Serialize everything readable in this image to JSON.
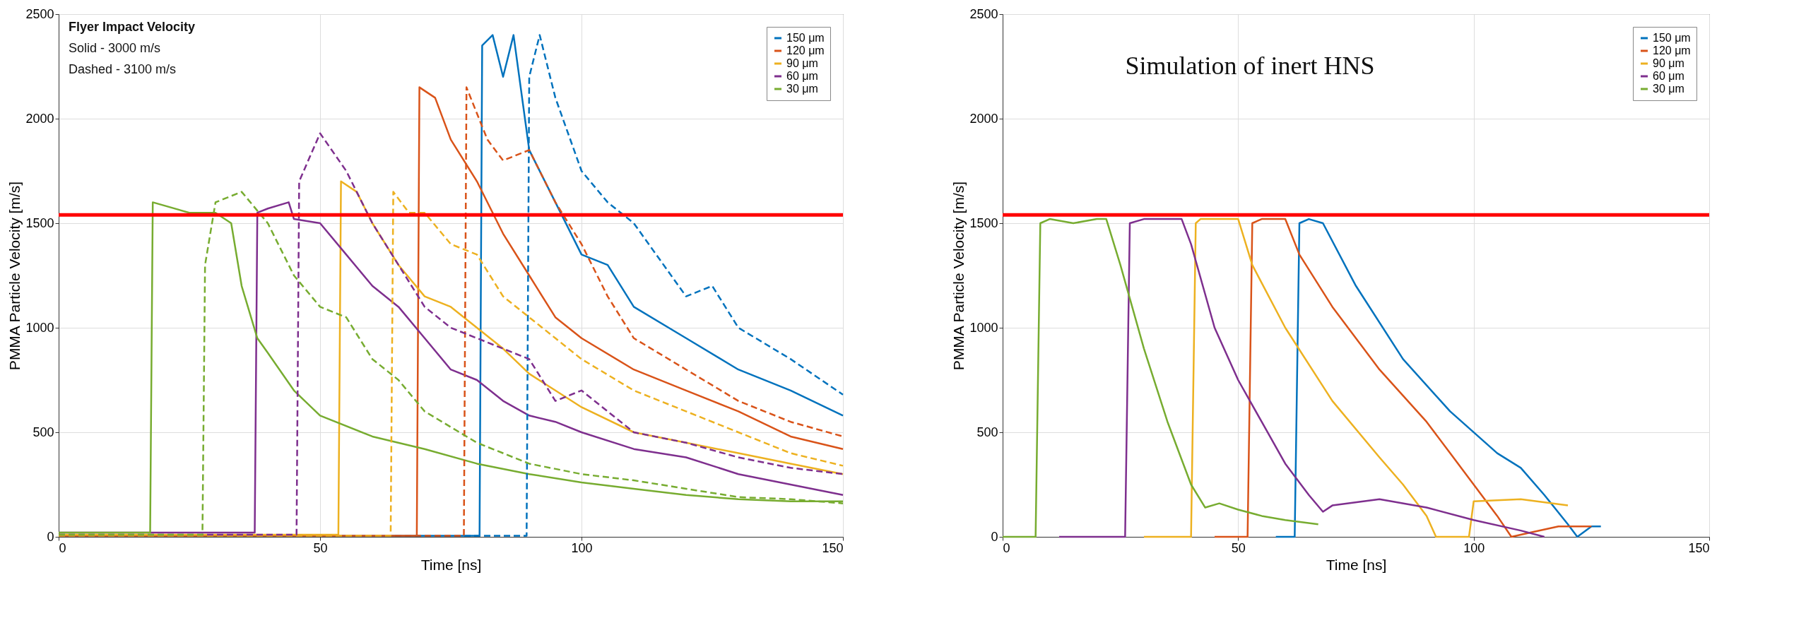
{
  "chart_data": [
    {
      "type": "line",
      "xlabel": "Time [ns]",
      "ylabel": "PMMA Particle Velocity [m/s]",
      "xlim": [
        0,
        150
      ],
      "ylim": [
        0,
        2500
      ],
      "xticks": [
        0,
        50,
        100,
        150
      ],
      "yticks": [
        0,
        500,
        1000,
        1500,
        2000,
        2500
      ],
      "grid": true,
      "legend": "top right",
      "annotations": [
        "Flyer Impact Velocity",
        "Solid - 3000 m/s",
        "Dashed - 3100 m/s"
      ],
      "ref_lines": [
        {
          "axis": "y",
          "value": 1540,
          "color": "#ff0000"
        }
      ],
      "series": [
        {
          "name": "150 μm",
          "color": "#0072bd",
          "line_style": "solid",
          "x": [
            0,
            80.5,
            81,
            83,
            85,
            87,
            90,
            95,
            100,
            105,
            110,
            120,
            130,
            140,
            150
          ],
          "values": [
            5,
            5,
            2350,
            2400,
            2200,
            2400,
            1850,
            1600,
            1350,
            1300,
            1100,
            950,
            800,
            700,
            580
          ]
        },
        {
          "name": "120 μm",
          "color": "#d95319",
          "line_style": "solid",
          "x": [
            0,
            68.5,
            69,
            72,
            75,
            80,
            85,
            90,
            95,
            100,
            110,
            120,
            130,
            140,
            150
          ],
          "values": [
            5,
            5,
            2150,
            2100,
            1900,
            1700,
            1450,
            1250,
            1050,
            950,
            800,
            700,
            600,
            480,
            420
          ]
        },
        {
          "name": "90 μm",
          "color": "#edb120",
          "line_style": "solid",
          "x": [
            0,
            53.5,
            54,
            57,
            60,
            65,
            70,
            75,
            80,
            85,
            90,
            95,
            100,
            110,
            120,
            130,
            140,
            150
          ],
          "values": [
            10,
            10,
            1700,
            1650,
            1500,
            1300,
            1150,
            1100,
            1000,
            900,
            780,
            700,
            620,
            500,
            450,
            400,
            350,
            300
          ]
        },
        {
          "name": "60 μm",
          "color": "#7e2f8e",
          "line_style": "solid",
          "x": [
            0,
            37.5,
            38,
            40,
            44,
            45,
            50,
            55,
            60,
            65,
            70,
            75,
            80,
            85,
            90,
            95,
            100,
            110,
            120,
            130,
            140,
            150
          ],
          "values": [
            20,
            20,
            1550,
            1570,
            1600,
            1520,
            1500,
            1350,
            1200,
            1100,
            950,
            800,
            750,
            650,
            580,
            550,
            500,
            420,
            380,
            300,
            250,
            200
          ]
        },
        {
          "name": "30 μm",
          "color": "#77ac30",
          "line_style": "solid",
          "x": [
            0,
            17.5,
            18,
            25,
            30,
            33,
            35,
            38,
            40,
            45,
            50,
            60,
            70,
            80,
            90,
            100,
            110,
            120,
            130,
            140,
            150
          ],
          "values": [
            20,
            20,
            1600,
            1550,
            1550,
            1500,
            1200,
            950,
            880,
            700,
            580,
            480,
            420,
            350,
            300,
            260,
            230,
            200,
            180,
            170,
            170
          ]
        },
        {
          "color": "#0072bd",
          "line_style": "dashed",
          "x": [
            0,
            89.5,
            90,
            92,
            95,
            100,
            105,
            110,
            120,
            125,
            130,
            140,
            150
          ],
          "values": [
            5,
            5,
            2200,
            2400,
            2100,
            1750,
            1600,
            1500,
            1150,
            1200,
            1000,
            850,
            680
          ]
        },
        {
          "color": "#d95319",
          "line_style": "dashed",
          "x": [
            0,
            77.5,
            78,
            82,
            85,
            90,
            95,
            100,
            105,
            110,
            120,
            130,
            140,
            150
          ],
          "values": [
            5,
            5,
            2150,
            1900,
            1800,
            1850,
            1600,
            1400,
            1150,
            950,
            800,
            650,
            550,
            480
          ]
        },
        {
          "color": "#edb120",
          "line_style": "dashed",
          "x": [
            0,
            63.5,
            64,
            67,
            70,
            75,
            80,
            85,
            90,
            95,
            100,
            110,
            120,
            130,
            140,
            150
          ],
          "values": [
            5,
            5,
            1650,
            1550,
            1550,
            1400,
            1350,
            1150,
            1050,
            950,
            850,
            700,
            600,
            500,
            400,
            340
          ]
        },
        {
          "color": "#7e2f8e",
          "line_style": "dashed",
          "x": [
            0,
            45.5,
            46,
            50,
            55,
            60,
            65,
            70,
            75,
            80,
            90,
            95,
            100,
            110,
            120,
            130,
            140,
            150
          ],
          "values": [
            10,
            10,
            1700,
            1930,
            1750,
            1500,
            1300,
            1100,
            1000,
            950,
            850,
            650,
            700,
            500,
            450,
            380,
            330,
            300
          ]
        },
        {
          "color": "#77ac30",
          "line_style": "dashed",
          "x": [
            0,
            27.5,
            28,
            30,
            35,
            40,
            42,
            45,
            50,
            55,
            60,
            65,
            70,
            80,
            90,
            100,
            110,
            120,
            130,
            140,
            150
          ],
          "values": [
            10,
            10,
            1300,
            1600,
            1650,
            1500,
            1400,
            1250,
            1100,
            1050,
            850,
            750,
            600,
            450,
            350,
            300,
            270,
            230,
            190,
            180,
            160
          ]
        }
      ]
    },
    {
      "type": "line",
      "xlabel": "Time [ns]",
      "ylabel": "PMMA Particle Velocity [m/s]",
      "xlim": [
        0,
        150
      ],
      "ylim": [
        0,
        2500
      ],
      "xticks": [
        0,
        50,
        100,
        150
      ],
      "yticks": [
        0,
        500,
        1000,
        1500,
        2000,
        2500
      ],
      "grid": true,
      "legend": "top right",
      "annotations": [
        "Simulation of inert HNS"
      ],
      "ref_lines": [
        {
          "axis": "y",
          "value": 1540,
          "color": "#ff0000"
        }
      ],
      "series": [
        {
          "name": "150 μm",
          "color": "#0072bd",
          "line_style": "solid",
          "x": [
            58,
            62,
            63,
            65,
            68,
            75,
            85,
            95,
            105,
            110,
            115,
            120,
            122,
            125,
            127
          ],
          "values": [
            0,
            0,
            1500,
            1520,
            1500,
            1200,
            850,
            600,
            400,
            330,
            200,
            60,
            0,
            50,
            50
          ]
        },
        {
          "name": "120 μm",
          "color": "#d95319",
          "line_style": "solid",
          "x": [
            45,
            52,
            53,
            55,
            60,
            63,
            70,
            80,
            90,
            95,
            100,
            105,
            108,
            112,
            118,
            125
          ],
          "values": [
            0,
            0,
            1500,
            1520,
            1520,
            1350,
            1100,
            800,
            550,
            400,
            250,
            100,
            0,
            20,
            50,
            50
          ]
        },
        {
          "name": "90 μm",
          "color": "#edb120",
          "line_style": "solid",
          "x": [
            30,
            40,
            41,
            42,
            50,
            53,
            60,
            70,
            80,
            85,
            90,
            92,
            99,
            100,
            110,
            120
          ],
          "values": [
            0,
            0,
            1500,
            1520,
            1520,
            1300,
            1000,
            650,
            380,
            250,
            100,
            0,
            0,
            170,
            180,
            150
          ]
        },
        {
          "name": "60 μm",
          "color": "#7e2f8e",
          "line_style": "solid",
          "x": [
            12,
            26,
            27,
            30,
            38,
            40,
            45,
            50,
            55,
            60,
            65,
            68,
            70,
            80,
            90,
            100,
            110,
            115
          ],
          "values": [
            0,
            0,
            1500,
            1520,
            1520,
            1400,
            1000,
            750,
            550,
            350,
            200,
            120,
            150,
            180,
            140,
            80,
            30,
            0
          ]
        },
        {
          "name": "30 μm",
          "color": "#77ac30",
          "line_style": "solid",
          "x": [
            0,
            7,
            8,
            10,
            15,
            20,
            22,
            25,
            30,
            35,
            40,
            43,
            46,
            50,
            55,
            60,
            67
          ],
          "values": [
            0,
            0,
            1500,
            1520,
            1500,
            1520,
            1520,
            1300,
            900,
            550,
            250,
            140,
            160,
            130,
            100,
            80,
            60
          ]
        }
      ]
    }
  ]
}
